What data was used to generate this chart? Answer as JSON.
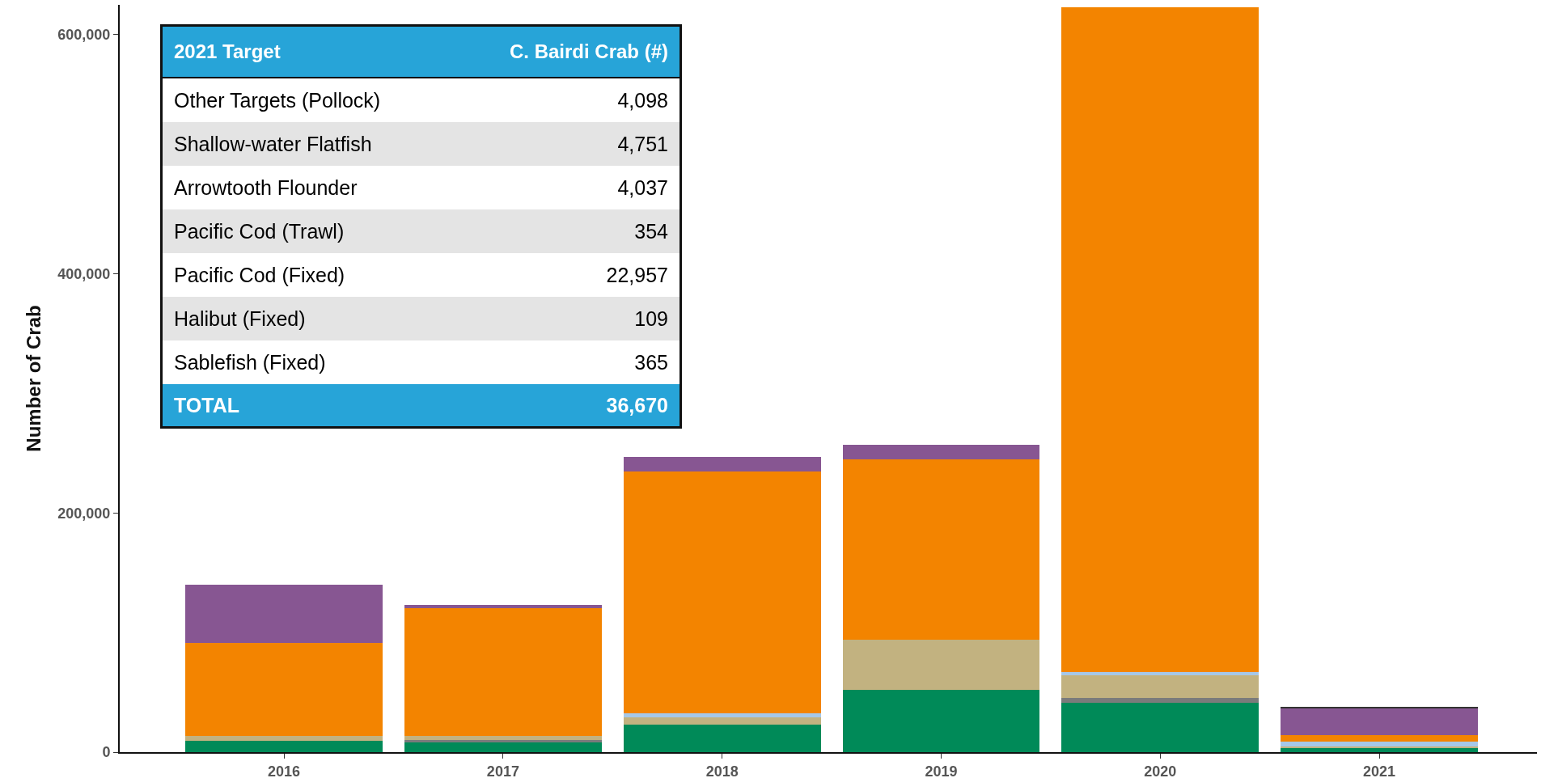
{
  "chart_data": [
    {
      "type": "bar",
      "stacked": true,
      "ylabel": "Number of Crab",
      "categories": [
        "2016",
        "2017",
        "2018",
        "2019",
        "2020",
        "2021"
      ],
      "series": [
        {
          "color": "#008a58",
          "values": [
            9500,
            8000,
            23000,
            52400,
            41500,
            4000
          ]
        },
        {
          "color": "#7b7b7b",
          "values": [
            null,
            2000,
            null,
            null,
            3500,
            null
          ]
        },
        {
          "color": "#c2b280",
          "values": [
            4000,
            3500,
            6300,
            41500,
            19000,
            1000
          ]
        },
        {
          "color": "#a6c8e8",
          "values": [
            null,
            null,
            3000,
            null,
            2700,
            4000
          ]
        },
        {
          "color": "#f38400",
          "values": [
            77500,
            107000,
            202700,
            151000,
            556000,
            5000
          ]
        },
        {
          "color": "#875692",
          "values": [
            49000,
            2700,
            11600,
            12300,
            null,
            23000
          ]
        },
        {
          "color": "#333333",
          "values": [
            null,
            null,
            null,
            null,
            null,
            500
          ]
        }
      ],
      "ylim": [
        0,
        625000
      ],
      "yticks": [
        {
          "value": 0,
          "label": "0"
        },
        {
          "value": 200000,
          "label": "200,000"
        },
        {
          "value": 400000,
          "label": "400,000"
        },
        {
          "value": 600000,
          "label": "600,000"
        }
      ],
      "grid": false
    },
    {
      "type": "other",
      "title": "2021 Target",
      "ylabel": "C. Bairdi Crab (#)",
      "categories": [
        "Other Targets (Pollock)",
        "Shallow-water Flatfish",
        "Arrowtooth Flounder",
        "Pacific Cod (Trawl)",
        "Pacific Cod (Fixed)",
        "Halibut (Fixed)",
        "Sablefish (Fixed)"
      ],
      "value_labels": [
        "4,098",
        "4,751",
        "4,037",
        "354",
        "22,957",
        "109",
        "365"
      ],
      "annotations": [
        "TOTAL"
      ],
      "totals": [
        "36,670"
      ]
    }
  ]
}
